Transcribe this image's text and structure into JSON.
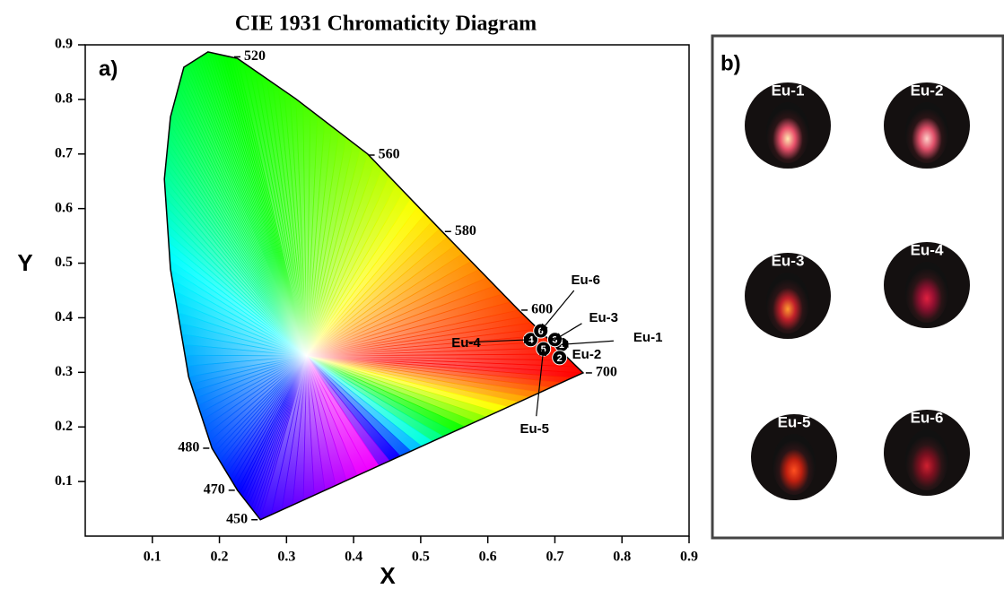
{
  "chart_data": {
    "type": "chromaticity",
    "title": "CIE 1931 Chromaticity Diagram",
    "panel_label": "a)",
    "x_label": "X",
    "y_label": "Y",
    "xlim": [
      0,
      0.9
    ],
    "ylim": [
      0,
      0.9
    ],
    "xticks": [
      0.1,
      0.2,
      0.3,
      0.4,
      0.5,
      0.6,
      0.7,
      0.8,
      0.9
    ],
    "yticks": [
      0.1,
      0.2,
      0.3,
      0.4,
      0.5,
      0.6,
      0.7,
      0.8,
      0.9
    ],
    "locus": {
      "x": [
        0.261,
        0.227,
        0.189,
        0.154,
        0.127,
        0.118,
        0.127,
        0.147,
        0.183,
        0.227,
        0.314,
        0.421,
        0.528,
        0.646,
        0.742
      ],
      "y": [
        0.03,
        0.084,
        0.161,
        0.292,
        0.489,
        0.654,
        0.768,
        0.859,
        0.887,
        0.875,
        0.801,
        0.7,
        0.563,
        0.414,
        0.299
      ]
    },
    "wavelength_labels": [
      {
        "label": "520",
        "x": 0.218,
        "y": 0.878
      },
      {
        "label": "560",
        "x": 0.418,
        "y": 0.698
      },
      {
        "label": "580",
        "x": 0.532,
        "y": 0.558
      },
      {
        "label": "600",
        "x": 0.646,
        "y": 0.414
      },
      {
        "label": "700",
        "x": 0.742,
        "y": 0.299
      },
      {
        "label": "480",
        "x": 0.189,
        "y": 0.161
      },
      {
        "label": "470",
        "x": 0.227,
        "y": 0.084
      },
      {
        "label": "450",
        "x": 0.261,
        "y": 0.03
      }
    ],
    "marker_color": "#000000",
    "points": [
      {
        "name": "Eu-1",
        "marker_label": "1",
        "x": 0.71,
        "y": 0.351
      },
      {
        "name": "Eu-2",
        "marker_label": "2",
        "x": 0.707,
        "y": 0.327
      },
      {
        "name": "Eu-3",
        "marker_label": "3",
        "x": 0.7,
        "y": 0.36
      },
      {
        "name": "Eu-4",
        "marker_label": "4",
        "x": 0.664,
        "y": 0.36
      },
      {
        "name": "Eu-5",
        "marker_label": "5",
        "x": 0.683,
        "y": 0.343
      },
      {
        "name": "Eu-6",
        "marker_label": "6",
        "x": 0.679,
        "y": 0.376
      }
    ]
  },
  "panel_b": {
    "label": "b)",
    "samples": [
      "Eu-1",
      "Eu-2",
      "Eu-3",
      "Eu-4",
      "Eu-5",
      "Eu-6"
    ]
  }
}
